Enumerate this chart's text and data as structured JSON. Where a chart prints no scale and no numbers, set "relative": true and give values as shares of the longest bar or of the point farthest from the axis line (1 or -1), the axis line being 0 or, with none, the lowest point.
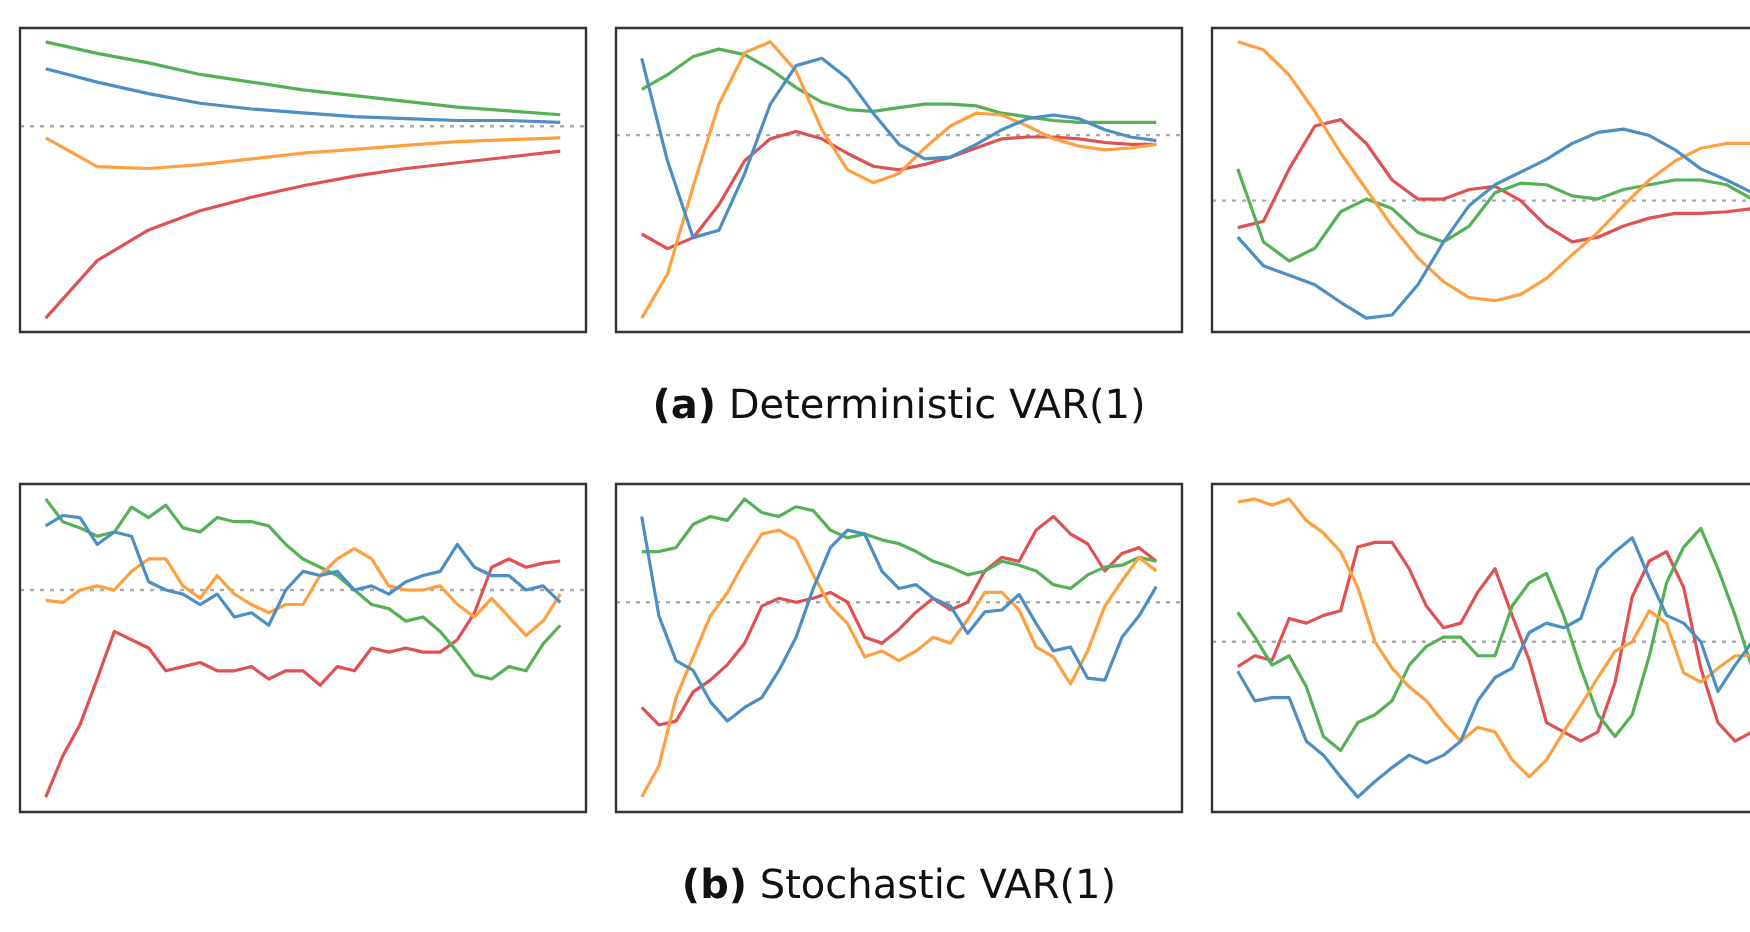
{
  "chart_data": [
    {
      "type": "line",
      "relative": true,
      "categories": [
        null,
        null,
        null,
        null,
        null,
        null,
        null,
        null,
        null,
        null,
        null
      ],
      "ref_lines": [
        {
          "axis": "y",
          "value": 0,
          "line_style": "dotted",
          "color": "#aaaaaa"
        }
      ],
      "series": [
        {
          "color": "#4c8fc4",
          "values": [
            0.3,
            0.23,
            0.17,
            0.12,
            0.09,
            0.07,
            0.05,
            0.04,
            0.03,
            0.03,
            0.02
          ]
        },
        {
          "color": "#ffa040",
          "values": [
            -0.06,
            -0.21,
            -0.22,
            -0.2,
            -0.17,
            -0.14,
            -0.12,
            -0.1,
            -0.08,
            -0.07,
            -0.06
          ]
        },
        {
          "color": "#55b155",
          "values": [
            0.44,
            0.38,
            0.33,
            0.27,
            0.23,
            0.19,
            0.16,
            0.13,
            0.1,
            0.08,
            0.06
          ]
        },
        {
          "color": "#df5152",
          "values": [
            -1,
            -0.7,
            -0.54,
            -0.44,
            -0.37,
            -0.31,
            -0.26,
            -0.22,
            -0.19,
            -0.16,
            -0.13
          ]
        }
      ]
    },
    {
      "type": "line",
      "relative": true,
      "xlabel": "(a) Deterministic VAR(1)",
      "categories": [
        null,
        null,
        null,
        null,
        null,
        null,
        null,
        null,
        null,
        null,
        null,
        null,
        null,
        null,
        null,
        null,
        null,
        null,
        null,
        null,
        null
      ],
      "ref_lines": [
        {
          "axis": "y",
          "value": 0,
          "line_style": "dotted",
          "color": "#aaaaaa"
        }
      ],
      "series": [
        {
          "color": "#4c8fc4",
          "values": [
            0.42,
            -0.14,
            -0.56,
            -0.52,
            -0.21,
            0.17,
            0.38,
            0.42,
            0.31,
            0.12,
            -0.05,
            -0.13,
            -0.12,
            -0.05,
            0.03,
            0.09,
            0.11,
            0.09,
            0.03,
            -0.01,
            -0.03
          ]
        },
        {
          "color": "#ffa040",
          "values": [
            -1,
            -0.76,
            -0.28,
            0.17,
            0.45,
            0.51,
            0.35,
            0.03,
            -0.19,
            -0.26,
            -0.21,
            -0.07,
            0.05,
            0.12,
            0.11,
            0.05,
            -0.02,
            -0.06,
            -0.08,
            -0.07,
            -0.05
          ]
        },
        {
          "color": "#55b155",
          "values": [
            0.25,
            0.33,
            0.43,
            0.47,
            0.44,
            0.36,
            0.26,
            0.18,
            0.14,
            0.13,
            0.15,
            0.17,
            0.17,
            0.16,
            0.12,
            0.1,
            0.08,
            0.07,
            0.07,
            0.07,
            0.07
          ]
        },
        {
          "color": "#df5152",
          "values": [
            -0.54,
            -0.62,
            -0.56,
            -0.38,
            -0.14,
            -0.02,
            0.02,
            -0.02,
            -0.1,
            -0.17,
            -0.19,
            -0.16,
            -0.12,
            -0.07,
            -0.02,
            -0.01,
            -0.01,
            -0.02,
            -0.04,
            -0.05,
            -0.05
          ]
        }
      ]
    },
    {
      "type": "line",
      "relative": true,
      "categories": [
        null,
        null,
        null,
        null,
        null,
        null,
        null,
        null,
        null,
        null,
        null,
        null,
        null,
        null,
        null,
        null,
        null,
        null,
        null,
        null,
        null
      ],
      "ref_lines": [
        {
          "axis": "y",
          "value": 0,
          "line_style": "dotted",
          "color": "#aaaaaa"
        }
      ],
      "series": [
        {
          "color": "#4c8fc4",
          "values": [
            -0.23,
            -0.41,
            -0.47,
            -0.53,
            -0.64,
            -0.74,
            -0.72,
            -0.53,
            -0.26,
            -0.03,
            0.1,
            0.18,
            0.26,
            0.36,
            0.43,
            0.45,
            0.41,
            0.32,
            0.2,
            0.13,
            0.05
          ]
        },
        {
          "color": "#ffa040",
          "values": [
            1,
            0.95,
            0.79,
            0.56,
            0.3,
            0.07,
            -0.16,
            -0.36,
            -0.51,
            -0.61,
            -0.63,
            -0.59,
            -0.49,
            -0.34,
            -0.2,
            -0.03,
            0.13,
            0.25,
            0.33,
            0.36,
            0.36
          ]
        },
        {
          "color": "#55b155",
          "values": [
            0.2,
            -0.26,
            -0.38,
            -0.3,
            -0.07,
            0.01,
            -0.05,
            -0.2,
            -0.26,
            -0.16,
            0.05,
            0.11,
            0.1,
            0.03,
            0.01,
            0.07,
            0.1,
            0.13,
            0.13,
            0.1,
            0.01
          ]
        },
        {
          "color": "#df5152",
          "values": [
            -0.17,
            -0.13,
            0.2,
            0.47,
            0.51,
            0.36,
            0.13,
            0.01,
            0.01,
            0.07,
            0.09,
            0,
            -0.16,
            -0.26,
            -0.23,
            -0.16,
            -0.11,
            -0.08,
            -0.08,
            -0.07,
            -0.05
          ]
        }
      ]
    },
    {
      "type": "line",
      "relative": true,
      "categories": [
        null,
        null,
        null,
        null,
        null,
        null,
        null,
        null,
        null,
        null,
        null,
        null,
        null,
        null,
        null,
        null,
        null,
        null,
        null,
        null,
        null,
        null,
        null,
        null,
        null,
        null,
        null,
        null,
        null,
        null,
        null
      ],
      "ref_lines": [
        {
          "axis": "y",
          "value": 0,
          "line_style": "dotted",
          "color": "#aaaaaa"
        }
      ],
      "series": [
        {
          "color": "#4c8fc4",
          "values": [
            0.31,
            0.36,
            0.35,
            0.22,
            0.28,
            0.26,
            0.04,
            0,
            -0.02,
            -0.07,
            -0.02,
            -0.13,
            -0.11,
            -0.17,
            0,
            0.09,
            0.07,
            0.09,
            0,
            0.02,
            -0.02,
            0.04,
            0.07,
            0.09,
            0.22,
            0.11,
            0.07,
            0.07,
            0,
            0.02,
            -0.06
          ]
        },
        {
          "color": "#ffa040",
          "values": [
            -0.05,
            -0.06,
            0,
            0.02,
            0,
            0.09,
            0.15,
            0.15,
            0.02,
            -0.04,
            0.07,
            -0.02,
            -0.07,
            -0.11,
            -0.07,
            -0.07,
            0.07,
            0.15,
            0.2,
            0.15,
            0.02,
            0,
            0,
            0.02,
            -0.07,
            -0.13,
            -0.04,
            -0.13,
            -0.22,
            -0.15,
            -0.02
          ]
        },
        {
          "color": "#55b155",
          "values": [
            0.44,
            0.33,
            0.3,
            0.26,
            0.28,
            0.4,
            0.35,
            0.41,
            0.3,
            0.28,
            0.35,
            0.33,
            0.33,
            0.31,
            0.22,
            0.15,
            0.11,
            0.07,
            0,
            -0.07,
            -0.09,
            -0.15,
            -0.13,
            -0.2,
            -0.3,
            -0.41,
            -0.43,
            -0.37,
            -0.39,
            -0.26,
            -0.17
          ]
        },
        {
          "color": "#df5152",
          "values": [
            -1,
            -0.8,
            -0.65,
            -0.43,
            -0.2,
            -0.24,
            -0.28,
            -0.39,
            -0.37,
            -0.35,
            -0.39,
            -0.39,
            -0.37,
            -0.43,
            -0.39,
            -0.39,
            -0.46,
            -0.37,
            -0.39,
            -0.28,
            -0.3,
            -0.28,
            -0.3,
            -0.3,
            -0.24,
            -0.11,
            0.11,
            0.15,
            0.11,
            0.13,
            0.14
          ]
        }
      ]
    },
    {
      "type": "line",
      "relative": true,
      "xlabel": "(b) Stochastic VAR(1)",
      "categories": [
        null,
        null,
        null,
        null,
        null,
        null,
        null,
        null,
        null,
        null,
        null,
        null,
        null,
        null,
        null,
        null,
        null,
        null,
        null,
        null,
        null,
        null,
        null,
        null,
        null,
        null,
        null,
        null,
        null,
        null,
        null
      ],
      "ref_lines": [
        {
          "axis": "y",
          "value": 0,
          "line_style": "dotted",
          "color": "#aaaaaa"
        }
      ],
      "series": [
        {
          "color": "#4c8fc4",
          "values": [
            0.44,
            -0.07,
            -0.3,
            -0.35,
            -0.51,
            -0.61,
            -0.54,
            -0.49,
            -0.35,
            -0.18,
            0.07,
            0.28,
            0.37,
            0.35,
            0.16,
            0.07,
            0.09,
            0.02,
            -0.02,
            -0.16,
            -0.05,
            -0.04,
            0.04,
            -0.11,
            -0.25,
            -0.23,
            -0.39,
            -0.4,
            -0.18,
            -0.07,
            0.08
          ]
        },
        {
          "color": "#ffa040",
          "values": [
            -1,
            -0.84,
            -0.49,
            -0.28,
            -0.07,
            0.05,
            0.21,
            0.35,
            0.37,
            0.32,
            0.14,
            -0.02,
            -0.11,
            -0.28,
            -0.25,
            -0.3,
            -0.25,
            -0.18,
            -0.21,
            -0.09,
            0.05,
            0.05,
            -0.04,
            -0.23,
            -0.28,
            -0.42,
            -0.25,
            -0.02,
            0.11,
            0.23,
            0.16
          ]
        },
        {
          "color": "#55b155",
          "values": [
            0.26,
            0.26,
            0.28,
            0.4,
            0.44,
            0.42,
            0.53,
            0.46,
            0.44,
            0.49,
            0.47,
            0.37,
            0.33,
            0.35,
            0.32,
            0.3,
            0.26,
            0.21,
            0.18,
            0.14,
            0.16,
            0.21,
            0.19,
            0.16,
            0.09,
            0.07,
            0.14,
            0.18,
            0.19,
            0.23,
            0.21
          ]
        },
        {
          "color": "#df5152",
          "values": [
            -0.54,
            -0.63,
            -0.61,
            -0.46,
            -0.4,
            -0.32,
            -0.21,
            -0.02,
            0.02,
            0,
            0.02,
            0.05,
            0,
            -0.18,
            -0.21,
            -0.14,
            -0.05,
            0.02,
            -0.04,
            0,
            0.16,
            0.23,
            0.21,
            0.37,
            0.44,
            0.35,
            0.3,
            0.16,
            0.25,
            0.28,
            0.21
          ]
        }
      ]
    },
    {
      "type": "line",
      "relative": true,
      "categories": [
        null,
        null,
        null,
        null,
        null,
        null,
        null,
        null,
        null,
        null,
        null,
        null,
        null,
        null,
        null,
        null,
        null,
        null,
        null,
        null,
        null,
        null,
        null,
        null,
        null,
        null,
        null,
        null,
        null,
        null,
        null
      ],
      "ref_lines": [
        {
          "axis": "y",
          "value": 0,
          "line_style": "dotted",
          "color": "#aaaaaa"
        }
      ],
      "series": [
        {
          "color": "#4c8fc4",
          "values": [
            -0.19,
            -0.38,
            -0.36,
            -0.36,
            -0.64,
            -0.73,
            -0.87,
            -1,
            -0.9,
            -0.81,
            -0.73,
            -0.78,
            -0.73,
            -0.64,
            -0.38,
            -0.23,
            -0.17,
            0.06,
            0.12,
            0.09,
            0.15,
            0.47,
            0.58,
            0.67,
            0.41,
            0.17,
            0.12,
            0,
            -0.32,
            -0.15,
            0
          ]
        },
        {
          "color": "#ffa040",
          "values": [
            0.9,
            0.92,
            0.88,
            0.92,
            0.78,
            0.7,
            0.58,
            0.35,
            0,
            -0.17,
            -0.29,
            -0.38,
            -0.52,
            -0.64,
            -0.55,
            -0.58,
            -0.76,
            -0.87,
            -0.76,
            -0.58,
            -0.41,
            -0.23,
            -0.06,
            0,
            0.2,
            0.12,
            -0.2,
            -0.26,
            -0.17,
            -0.09,
            -0.09
          ]
        },
        {
          "color": "#55b155",
          "values": [
            0.19,
            0.03,
            -0.15,
            -0.09,
            -0.29,
            -0.61,
            -0.7,
            -0.52,
            -0.47,
            -0.38,
            -0.15,
            -0.03,
            0.03,
            0.03,
            -0.09,
            -0.09,
            0.23,
            0.38,
            0.44,
            0.17,
            -0.17,
            -0.47,
            -0.61,
            -0.47,
            -0.09,
            0.38,
            0.61,
            0.73,
            0.47,
            0.17,
            -0.17
          ]
        },
        {
          "color": "#df5152",
          "values": [
            -0.16,
            -0.09,
            -0.12,
            0.15,
            0.12,
            0.17,
            0.2,
            0.61,
            0.64,
            0.64,
            0.47,
            0.23,
            0.09,
            0.12,
            0.32,
            0.47,
            0.17,
            -0.12,
            -0.52,
            -0.58,
            -0.64,
            -0.58,
            -0.26,
            0.29,
            0.52,
            0.58,
            0.35,
            -0.17,
            -0.52,
            -0.64,
            -0.58
          ]
        }
      ]
    }
  ]
}
